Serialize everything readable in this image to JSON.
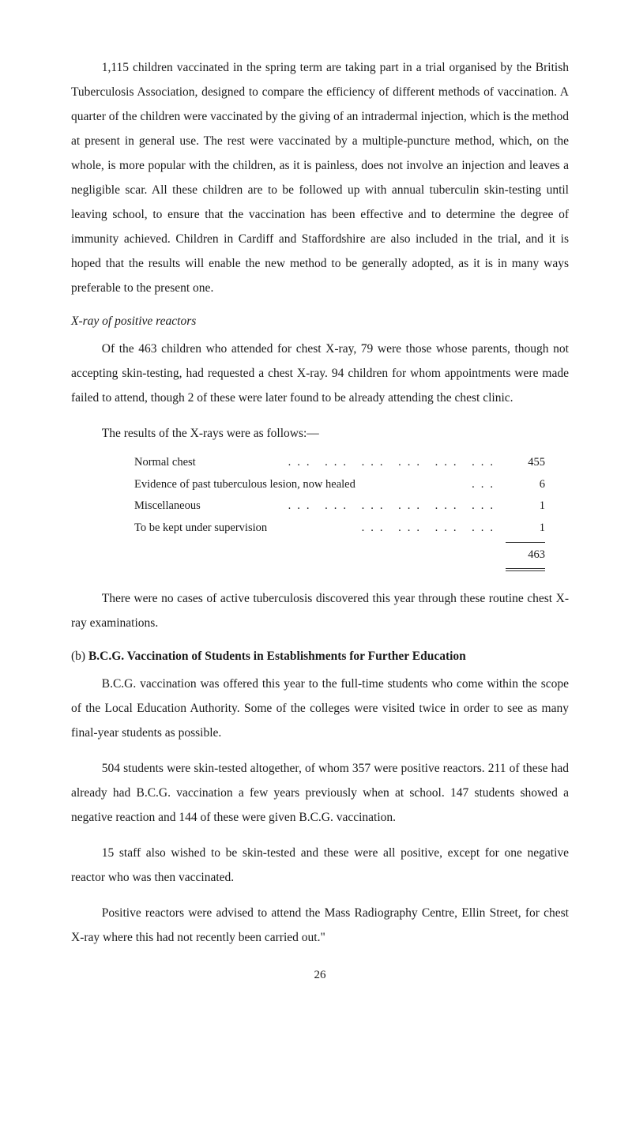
{
  "paragraphs": {
    "p1": "1,115 children vaccinated in the spring term are taking part in a trial organised by the British Tuberculosis Association, designed to compare the efficiency of different methods of vaccination. A quarter of the children were vaccinated by the giving of an intradermal injection, which is the method at present in general use. The rest were vaccinated by a multiple-puncture method, which, on the whole, is more popular with the children, as it is painless, does not involve an injection and leaves a negligible scar. All these children are to be followed up with annual tuberculin skin-testing until leaving school, to ensure that the vaccination has been effective and to de­termine the degree of immunity achieved. Children in Cardiff and Stafford­shire are also included in the trial, and it is hoped that the results will enable the new method to be generally adopted, as it is in many ways preferable to the present one.",
    "heading1": "X-ray of positive reactors",
    "p2": "Of the 463 children who attended for chest X-ray, 79 were those whose parents, though not accepting skin-testing, had requested a chest X-ray. 94 children for whom appointments were made failed to attend, though 2 of these were later found to be already attending the chest clinic.",
    "p3": "The results of the X-rays were as follows:—",
    "p4": "There were no cases of active tuberculosis discovered this year through these routine chest X-ray examinations.",
    "heading2_prefix": "(b) ",
    "heading2_bold": "B.C.G. Vaccination of Students in Establishments for Further Education",
    "p5": "B.C.G. vaccination was offered this year to the full-time students who come within the scope of the Local Education Authority. Some of the colleges were visited twice in order to see as many final-year students as possible.",
    "p6": "504 students were skin-tested altogether, of whom 357 were positive reactors. 211 of these had already had B.C.G. vaccination a few years pre­viously when at school. 147 students showed a negative reaction and 144 of these were given B.C.G. vaccination.",
    "p7": "15 staff also wished to be skin-tested and these were all positive, except for one negative reactor who was then vaccinated.",
    "p8": "Positive reactors were advised to attend the Mass Radiography Centre, Ellin Street, for chest X-ray where this had not recently been carried out.\""
  },
  "results": {
    "rows": [
      {
        "label": "Normal chest",
        "dots": "...   ...   ...   ...   ...   ...",
        "value": "455"
      },
      {
        "label": "Evidence of past tuberculous lesion, now healed",
        "dots": "...",
        "value": "6"
      },
      {
        "label": "Miscellaneous",
        "dots": "...   ...   ...   ...   ...   ...",
        "value": "1"
      },
      {
        "label": "To be kept under supervision",
        "dots": "...   ...   ...   ...",
        "value": "1"
      }
    ],
    "total": "463"
  },
  "page_number": "26"
}
